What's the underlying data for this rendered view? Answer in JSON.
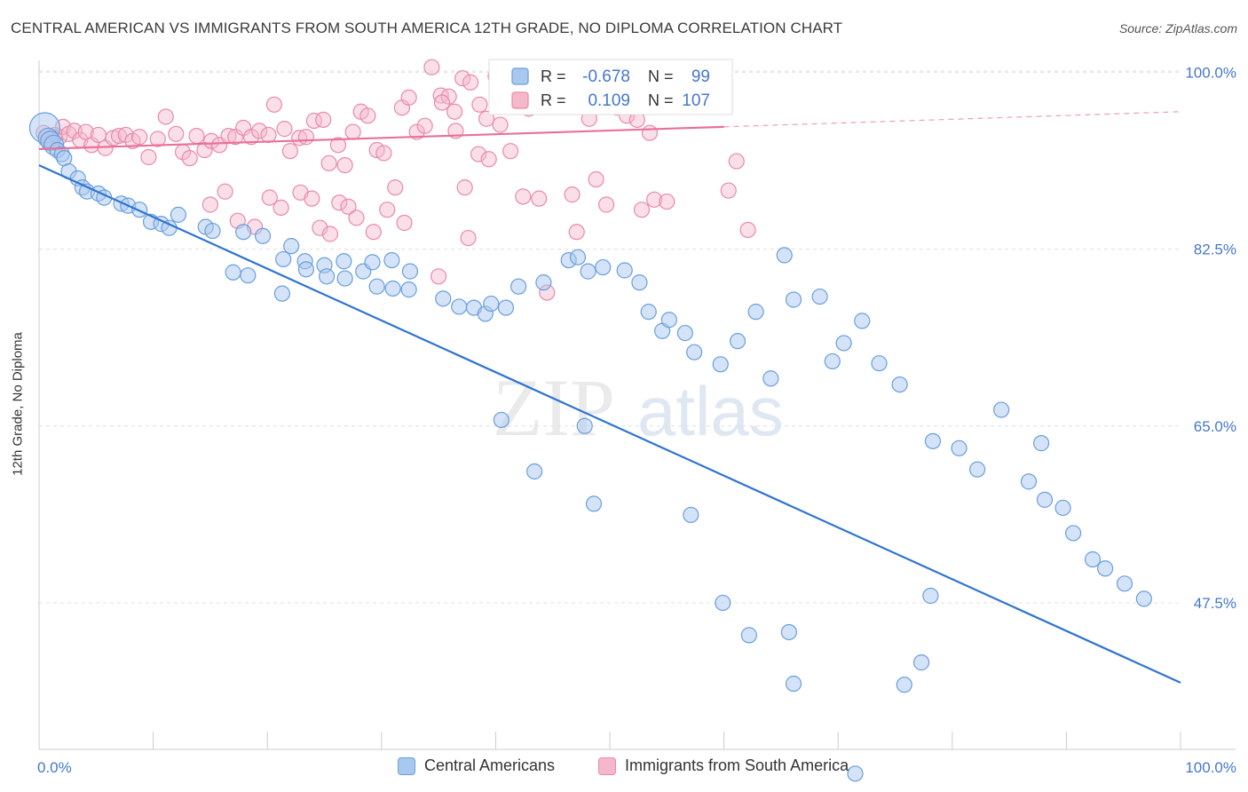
{
  "title": "CENTRAL AMERICAN VS IMMIGRANTS FROM SOUTH AMERICA 12TH GRADE, NO DIPLOMA CORRELATION CHART",
  "source": "Source: ZipAtlas.com",
  "watermark": {
    "zip": "ZIP",
    "atlas": "atlas"
  },
  "colors": {
    "blue_fill": "#a9c8ef",
    "blue_stroke": "#6a9fdc",
    "blue_line": "#2f74d0",
    "pink_fill": "#f5b8cb",
    "pink_stroke": "#e98aa9",
    "pink_line": "#e8709a",
    "tick_label": "#4477cc",
    "grid": "#e0e0e0"
  },
  "legend_top": {
    "rows": [
      {
        "r_label": "R =",
        "r_value": "-0.678",
        "n_label": "N =",
        "n_value": "99"
      },
      {
        "r_label": "R =",
        "r_value": "0.109",
        "n_label": "N =",
        "n_value": "107"
      }
    ]
  },
  "chart_data": {
    "type": "scatter",
    "title": "CENTRAL AMERICAN VS IMMIGRANTS FROM SOUTH AMERICA 12TH GRADE, NO DIPLOMA CORRELATION CHART",
    "xlabel": "",
    "ylabel": "12th Grade, No Diploma",
    "xlim": [
      0,
      100
    ],
    "ylim": [
      33,
      101
    ],
    "x_tick_labels": [
      "0.0%",
      "100.0%"
    ],
    "y_ticks": [
      {
        "value": 100,
        "label": "100.0%"
      },
      {
        "value": 82.5,
        "label": "82.5%"
      },
      {
        "value": 65,
        "label": "65.0%"
      },
      {
        "value": 47.5,
        "label": "47.5%"
      }
    ],
    "grid": true,
    "legend_position": "bottom",
    "series": [
      {
        "name": "Central Americans",
        "r": -0.678,
        "n": 99,
        "trend": {
          "x": [
            0,
            100
          ],
          "y": [
            90.8,
            39.6
          ]
        },
        "points": [
          [
            0.5,
            94.5
          ],
          [
            0.8,
            93.5
          ],
          [
            1.0,
            93.2
          ],
          [
            1.3,
            92.8
          ],
          [
            1.6,
            92.3
          ],
          [
            2.0,
            91.9
          ],
          [
            2.2,
            91.5
          ],
          [
            2.6,
            90.2
          ],
          [
            3.4,
            89.5
          ],
          [
            3.8,
            88.6
          ],
          [
            4.2,
            88.2
          ],
          [
            5.2,
            88.0
          ],
          [
            5.7,
            87.6
          ],
          [
            7.2,
            87.0
          ],
          [
            7.8,
            86.8
          ],
          [
            8.8,
            86.4
          ],
          [
            9.8,
            85.2
          ],
          [
            10.7,
            85.0
          ],
          [
            11.4,
            84.6
          ],
          [
            12.2,
            85.9
          ],
          [
            14.6,
            84.7
          ],
          [
            15.2,
            84.3
          ],
          [
            17.9,
            84.2
          ],
          [
            19.6,
            83.8
          ],
          [
            22.1,
            82.8
          ],
          [
            23.3,
            81.3
          ],
          [
            21.4,
            81.5
          ],
          [
            26.7,
            81.3
          ],
          [
            25.0,
            80.9
          ],
          [
            28.4,
            80.3
          ],
          [
            29.2,
            81.2
          ],
          [
            30.9,
            81.4
          ],
          [
            32.5,
            80.3
          ],
          [
            17.0,
            80.2
          ],
          [
            18.3,
            79.9
          ],
          [
            21.3,
            78.1
          ],
          [
            23.4,
            80.5
          ],
          [
            25.2,
            79.8
          ],
          [
            26.8,
            79.6
          ],
          [
            29.6,
            78.8
          ],
          [
            31.0,
            78.6
          ],
          [
            32.4,
            78.5
          ],
          [
            35.4,
            77.6
          ],
          [
            36.8,
            76.8
          ],
          [
            38.1,
            76.7
          ],
          [
            39.1,
            76.1
          ],
          [
            39.6,
            77.1
          ],
          [
            40.9,
            76.7
          ],
          [
            42.0,
            78.8
          ],
          [
            44.2,
            79.2
          ],
          [
            46.4,
            81.4
          ],
          [
            47.2,
            81.7
          ],
          [
            48.1,
            80.3
          ],
          [
            49.4,
            80.7
          ],
          [
            51.3,
            80.4
          ],
          [
            52.6,
            79.2
          ],
          [
            53.4,
            76.3
          ],
          [
            54.6,
            74.4
          ],
          [
            55.2,
            75.5
          ],
          [
            56.6,
            74.2
          ],
          [
            57.4,
            72.3
          ],
          [
            59.7,
            71.1
          ],
          [
            61.2,
            73.4
          ],
          [
            62.8,
            76.3
          ],
          [
            64.1,
            69.7
          ],
          [
            65.3,
            81.9
          ],
          [
            66.1,
            77.5
          ],
          [
            68.4,
            77.8
          ],
          [
            69.5,
            71.4
          ],
          [
            70.5,
            73.2
          ],
          [
            72.1,
            75.4
          ],
          [
            73.6,
            71.2
          ],
          [
            75.4,
            69.1
          ],
          [
            78.3,
            63.5
          ],
          [
            80.6,
            62.8
          ],
          [
            82.2,
            60.7
          ],
          [
            84.3,
            66.6
          ],
          [
            86.7,
            59.5
          ],
          [
            87.8,
            63.3
          ],
          [
            88.1,
            57.7
          ],
          [
            89.7,
            56.9
          ],
          [
            90.6,
            54.4
          ],
          [
            92.3,
            51.8
          ],
          [
            93.4,
            50.9
          ],
          [
            95.1,
            49.4
          ],
          [
            96.8,
            47.9
          ],
          [
            78.1,
            48.2
          ],
          [
            77.3,
            41.6
          ],
          [
            75.8,
            39.4
          ],
          [
            47.8,
            65.0
          ],
          [
            40.5,
            65.6
          ],
          [
            43.4,
            60.5
          ],
          [
            48.6,
            57.3
          ],
          [
            57.1,
            56.2
          ],
          [
            62.2,
            44.3
          ],
          [
            59.9,
            47.5
          ],
          [
            65.7,
            44.6
          ],
          [
            66.1,
            39.5
          ],
          [
            71.5,
            30.6
          ]
        ]
      },
      {
        "name": "Immigrants from South America",
        "r": 0.109,
        "n": 107,
        "trend": {
          "x": [
            0,
            60
          ],
          "y": [
            92.4,
            94.6
          ]
        },
        "trend_extension": {
          "x": [
            60,
            100
          ],
          "y": [
            94.6,
            96.1
          ]
        },
        "points": [
          [
            0.4,
            94.0
          ],
          [
            0.8,
            93.4
          ],
          [
            1.1,
            93.1
          ],
          [
            1.4,
            93.8
          ],
          [
            1.8,
            93.6
          ],
          [
            2.1,
            94.6
          ],
          [
            2.6,
            93.9
          ],
          [
            3.1,
            94.2
          ],
          [
            3.6,
            93.3
          ],
          [
            4.1,
            94.1
          ],
          [
            4.6,
            92.8
          ],
          [
            5.2,
            93.8
          ],
          [
            5.8,
            92.5
          ],
          [
            6.5,
            93.5
          ],
          [
            7.0,
            93.7
          ],
          [
            7.6,
            93.8
          ],
          [
            8.2,
            93.2
          ],
          [
            8.8,
            93.6
          ],
          [
            9.6,
            91.6
          ],
          [
            10.4,
            93.4
          ],
          [
            11.1,
            95.6
          ],
          [
            12.0,
            93.9
          ],
          [
            12.6,
            92.1
          ],
          [
            13.2,
            91.5
          ],
          [
            13.8,
            93.7
          ],
          [
            14.5,
            92.3
          ],
          [
            15.1,
            93.2
          ],
          [
            15.8,
            92.8
          ],
          [
            16.6,
            93.7
          ],
          [
            17.2,
            93.6
          ],
          [
            17.9,
            94.5
          ],
          [
            18.6,
            93.6
          ],
          [
            19.3,
            94.2
          ],
          [
            20.1,
            93.8
          ],
          [
            20.6,
            96.8
          ],
          [
            21.5,
            94.4
          ],
          [
            22.0,
            92.2
          ],
          [
            22.8,
            93.5
          ],
          [
            23.4,
            93.6
          ],
          [
            24.1,
            95.2
          ],
          [
            24.9,
            95.3
          ],
          [
            25.4,
            91.0
          ],
          [
            26.2,
            92.8
          ],
          [
            26.8,
            90.8
          ],
          [
            27.5,
            94.1
          ],
          [
            28.2,
            96.1
          ],
          [
            28.8,
            95.7
          ],
          [
            29.6,
            92.3
          ],
          [
            30.2,
            92.0
          ],
          [
            31.2,
            88.6
          ],
          [
            31.8,
            96.5
          ],
          [
            32.4,
            97.5
          ],
          [
            33.1,
            94.1
          ],
          [
            33.8,
            94.7
          ],
          [
            34.4,
            100.5
          ],
          [
            35.2,
            97.7
          ],
          [
            35.9,
            97.6
          ],
          [
            36.4,
            96.1
          ],
          [
            37.1,
            99.4
          ],
          [
            37.8,
            99.0
          ],
          [
            38.6,
            96.8
          ],
          [
            39.2,
            95.4
          ],
          [
            40.0,
            99.6
          ],
          [
            40.8,
            98.3
          ],
          [
            41.4,
            97.9
          ],
          [
            42.1,
            97.6
          ],
          [
            42.9,
            96.4
          ],
          [
            43.5,
            98.5
          ],
          [
            44.3,
            100.5
          ],
          [
            45.1,
            98.7
          ],
          [
            46.1,
            98.2
          ],
          [
            46.8,
            98.6
          ],
          [
            47.5,
            97.2
          ],
          [
            48.2,
            95.4
          ],
          [
            49.6,
            98.1
          ],
          [
            50.6,
            96.5
          ],
          [
            51.5,
            95.7
          ],
          [
            52.4,
            95.3
          ],
          [
            53.5,
            94.0
          ],
          [
            22.9,
            88.1
          ],
          [
            23.9,
            87.5
          ],
          [
            24.6,
            84.6
          ],
          [
            25.5,
            84.0
          ],
          [
            26.3,
            87.1
          ],
          [
            27.1,
            86.7
          ],
          [
            27.8,
            85.6
          ],
          [
            29.3,
            84.2
          ],
          [
            30.5,
            86.4
          ],
          [
            32.0,
            85.1
          ],
          [
            15.0,
            86.9
          ],
          [
            16.3,
            88.2
          ],
          [
            17.4,
            85.3
          ],
          [
            18.9,
            84.7
          ],
          [
            20.2,
            87.6
          ],
          [
            21.2,
            86.6
          ],
          [
            35.3,
            97.0
          ],
          [
            36.5,
            94.2
          ],
          [
            37.3,
            88.6
          ],
          [
            38.5,
            91.9
          ],
          [
            39.4,
            91.4
          ],
          [
            40.4,
            94.8
          ],
          [
            41.3,
            92.2
          ],
          [
            42.4,
            87.7
          ],
          [
            43.8,
            87.5
          ],
          [
            46.7,
            87.9
          ],
          [
            48.8,
            89.4
          ],
          [
            49.7,
            86.9
          ],
          [
            52.8,
            86.4
          ],
          [
            53.9,
            87.4
          ],
          [
            55.0,
            87.2
          ],
          [
            35.0,
            79.8
          ],
          [
            44.5,
            78.2
          ],
          [
            47.1,
            84.2
          ],
          [
            37.6,
            83.6
          ],
          [
            60.4,
            88.3
          ],
          [
            61.1,
            91.2
          ],
          [
            62.1,
            84.4
          ]
        ]
      }
    ]
  },
  "legend_bottom": [
    {
      "label": "Central Americans"
    },
    {
      "label": "Immigrants from South America"
    }
  ]
}
